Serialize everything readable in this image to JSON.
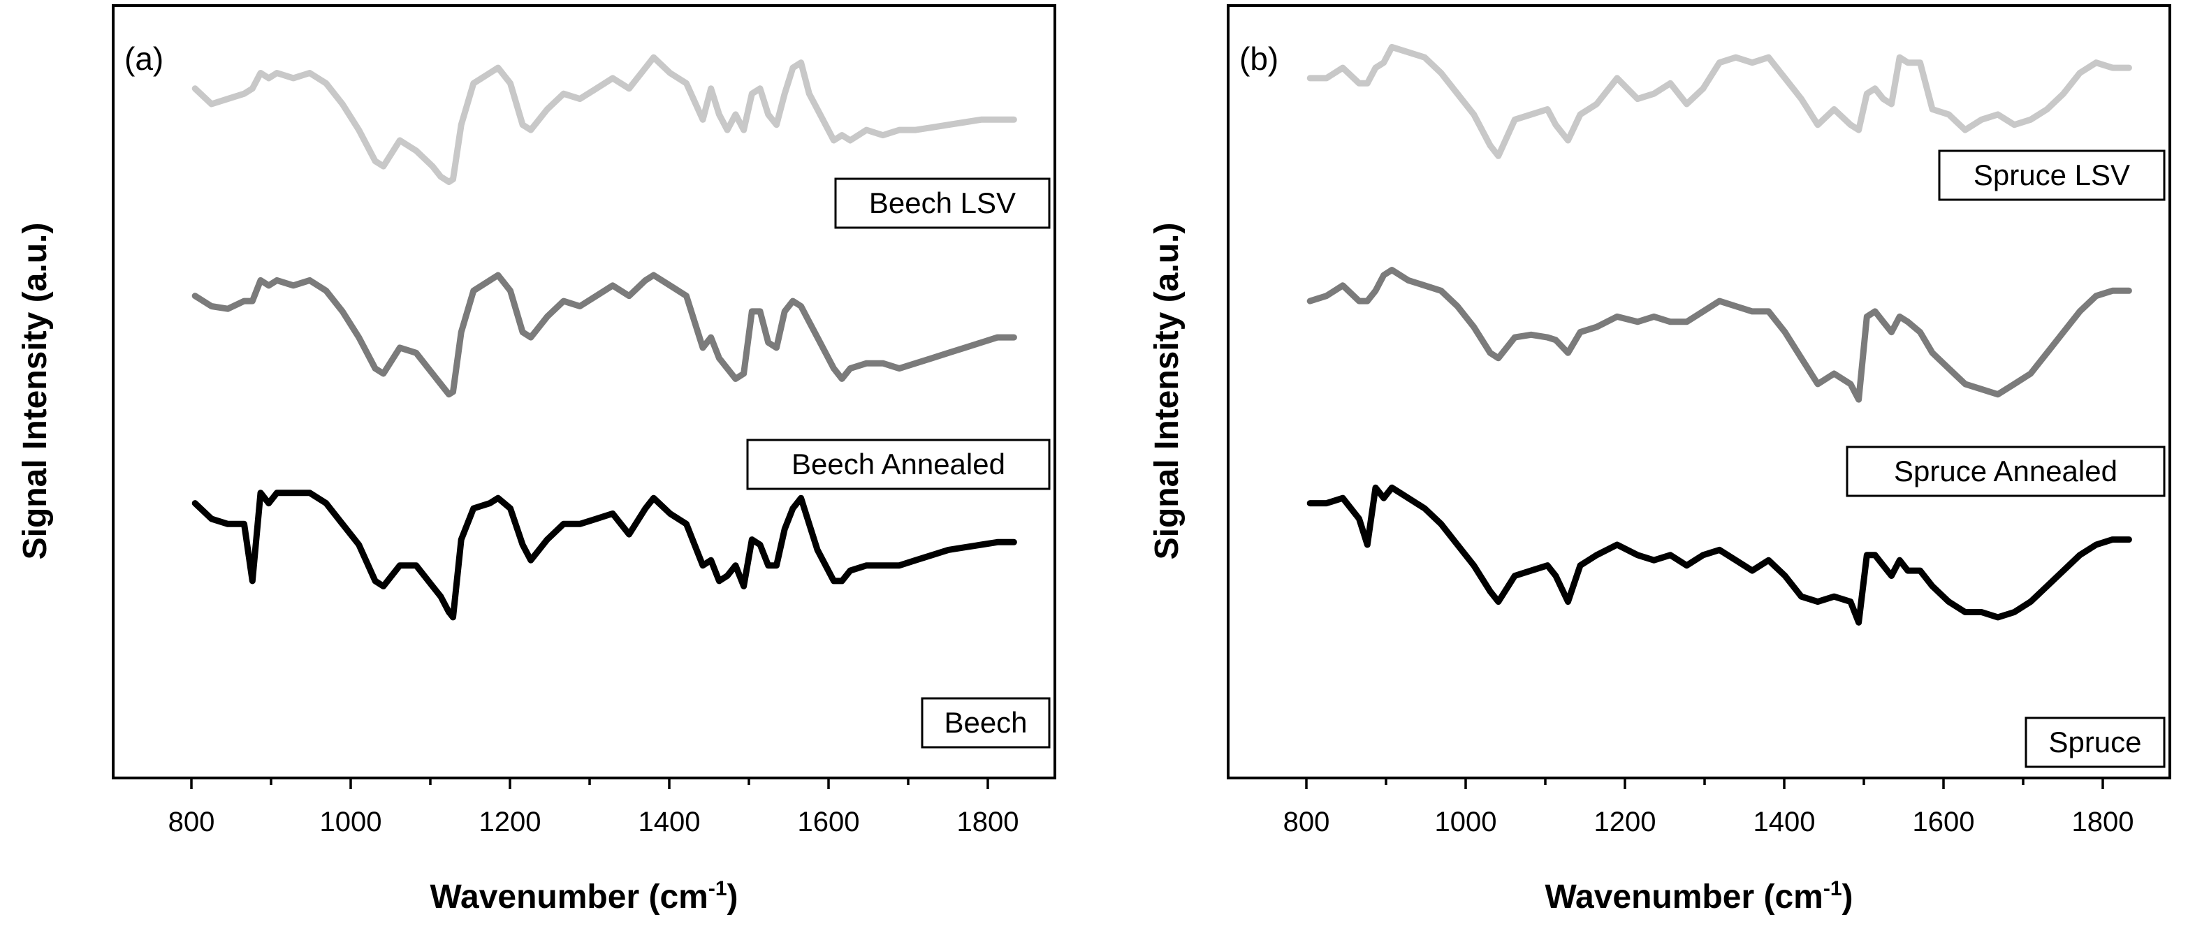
{
  "chart_data": [
    {
      "type": "line",
      "panel_label": "(a)",
      "xlabel": "Wavenumber (cm",
      "xlabel_exponent": "-1",
      "xlabel_suffix": ")",
      "ylabel": "Signal Intensity (a.u.)",
      "xlim": [
        700,
        1850
      ],
      "ylim": [
        -2.6,
        12.3
      ],
      "xticks": [
        800,
        1000,
        1200,
        1400,
        1600,
        1800
      ],
      "y_tick_labels_shown": false,
      "series": [
        {
          "name": "Beech LSV",
          "color": "#c8c8c8",
          "x": [
            800,
            820,
            840,
            860,
            870,
            880,
            890,
            900,
            920,
            940,
            960,
            980,
            1000,
            1020,
            1030,
            1050,
            1070,
            1090,
            1100,
            1110,
            1115,
            1125,
            1140,
            1160,
            1170,
            1185,
            1200,
            1210,
            1230,
            1250,
            1270,
            1290,
            1310,
            1330,
            1350,
            1360,
            1380,
            1400,
            1420,
            1430,
            1440,
            1450,
            1460,
            1470,
            1480,
            1490,
            1500,
            1510,
            1520,
            1530,
            1540,
            1550,
            1560,
            1580,
            1590,
            1600,
            1620,
            1640,
            1660,
            1680,
            1700,
            1720,
            1740,
            1760,
            1780,
            1800
          ],
          "y": [
            10.7,
            10.4,
            10.5,
            10.6,
            10.7,
            11.0,
            10.9,
            11.0,
            10.9,
            11.0,
            10.8,
            10.4,
            9.9,
            9.3,
            9.2,
            9.7,
            9.5,
            9.2,
            9.0,
            8.9,
            8.95,
            10.0,
            10.8,
            11.0,
            11.1,
            10.8,
            10.0,
            9.9,
            10.3,
            10.6,
            10.5,
            10.7,
            10.9,
            10.7,
            11.1,
            11.3,
            11.0,
            10.8,
            10.1,
            10.7,
            10.2,
            9.9,
            10.2,
            9.9,
            10.6,
            10.7,
            10.2,
            10.0,
            10.6,
            11.1,
            11.2,
            10.6,
            10.3,
            9.7,
            9.8,
            9.7,
            9.9,
            9.8,
            9.9,
            9.9,
            9.95,
            10.0,
            10.05,
            10.1,
            10.1,
            10.1
          ]
        },
        {
          "name": "Beech Annealed",
          "color": "#7b7b7b",
          "x": [
            800,
            820,
            840,
            860,
            870,
            880,
            890,
            900,
            920,
            940,
            960,
            980,
            1000,
            1020,
            1030,
            1050,
            1070,
            1090,
            1100,
            1110,
            1115,
            1125,
            1140,
            1160,
            1170,
            1185,
            1200,
            1210,
            1230,
            1250,
            1270,
            1290,
            1310,
            1330,
            1350,
            1360,
            1380,
            1400,
            1420,
            1430,
            1440,
            1450,
            1460,
            1470,
            1480,
            1490,
            1500,
            1510,
            1520,
            1530,
            1540,
            1550,
            1560,
            1580,
            1590,
            1600,
            1620,
            1640,
            1660,
            1680,
            1700,
            1720,
            1740,
            1760,
            1780,
            1800
          ],
          "y": [
            6.7,
            6.5,
            6.45,
            6.6,
            6.6,
            7.0,
            6.9,
            7.0,
            6.9,
            7.0,
            6.8,
            6.4,
            5.9,
            5.3,
            5.2,
            5.7,
            5.6,
            5.2,
            5.0,
            4.8,
            4.85,
            6.0,
            6.8,
            7.0,
            7.1,
            6.8,
            6.0,
            5.9,
            6.3,
            6.6,
            6.5,
            6.7,
            6.9,
            6.7,
            7.0,
            7.1,
            6.9,
            6.7,
            5.7,
            5.9,
            5.5,
            5.3,
            5.1,
            5.2,
            6.4,
            6.4,
            5.8,
            5.7,
            6.4,
            6.6,
            6.5,
            6.2,
            5.9,
            5.3,
            5.1,
            5.3,
            5.4,
            5.4,
            5.3,
            5.4,
            5.5,
            5.6,
            5.7,
            5.8,
            5.9,
            5.9
          ]
        },
        {
          "name": "Beech",
          "color": "#000000",
          "x": [
            800,
            820,
            840,
            860,
            870,
            880,
            890,
            900,
            920,
            940,
            960,
            980,
            1000,
            1020,
            1030,
            1050,
            1070,
            1090,
            1100,
            1110,
            1115,
            1125,
            1140,
            1160,
            1170,
            1185,
            1200,
            1210,
            1230,
            1250,
            1270,
            1290,
            1310,
            1330,
            1350,
            1360,
            1380,
            1400,
            1420,
            1430,
            1440,
            1450,
            1460,
            1470,
            1480,
            1490,
            1500,
            1510,
            1520,
            1530,
            1540,
            1550,
            1560,
            1580,
            1590,
            1600,
            1620,
            1640,
            1660,
            1680,
            1700,
            1720,
            1740,
            1760,
            1780,
            1800
          ],
          "y": [
            2.7,
            2.4,
            2.3,
            2.3,
            1.2,
            2.9,
            2.7,
            2.9,
            2.9,
            2.9,
            2.7,
            2.3,
            1.9,
            1.2,
            1.1,
            1.5,
            1.5,
            1.1,
            0.9,
            0.6,
            0.5,
            2.0,
            2.6,
            2.7,
            2.8,
            2.6,
            1.9,
            1.6,
            2.0,
            2.3,
            2.3,
            2.4,
            2.5,
            2.1,
            2.6,
            2.8,
            2.5,
            2.3,
            1.5,
            1.6,
            1.2,
            1.3,
            1.5,
            1.1,
            2.0,
            1.9,
            1.5,
            1.5,
            2.2,
            2.6,
            2.8,
            2.3,
            1.8,
            1.2,
            1.2,
            1.4,
            1.5,
            1.5,
            1.5,
            1.6,
            1.7,
            1.8,
            1.85,
            1.9,
            1.95,
            1.95
          ]
        }
      ]
    },
    {
      "type": "line",
      "panel_label": "(b)",
      "xlabel": "Wavenumber (cm",
      "xlabel_exponent": "-1",
      "xlabel_suffix": ")",
      "ylabel": "Signal Intensity (a.u.)",
      "xlim": [
        700,
        1850
      ],
      "ylim": [
        -2.6,
        12.3
      ],
      "xticks": [
        800,
        1000,
        1200,
        1400,
        1600,
        1800
      ],
      "y_tick_labels_shown": false,
      "series": [
        {
          "name": "Spruce LSV",
          "color": "#c8c8c8",
          "x": [
            800,
            820,
            840,
            860,
            870,
            880,
            890,
            900,
            920,
            940,
            960,
            980,
            1000,
            1020,
            1030,
            1050,
            1070,
            1090,
            1100,
            1115,
            1130,
            1150,
            1175,
            1200,
            1220,
            1240,
            1260,
            1280,
            1300,
            1320,
            1340,
            1360,
            1380,
            1400,
            1420,
            1440,
            1460,
            1470,
            1480,
            1490,
            1500,
            1510,
            1520,
            1530,
            1545,
            1560,
            1580,
            1600,
            1620,
            1640,
            1660,
            1680,
            1700,
            1720,
            1740,
            1760,
            1780,
            1800
          ],
          "y": [
            10.9,
            10.9,
            11.1,
            10.8,
            10.8,
            11.1,
            11.2,
            11.5,
            11.4,
            11.3,
            11.0,
            10.6,
            10.2,
            9.6,
            9.4,
            10.1,
            10.2,
            10.3,
            10.0,
            9.7,
            10.2,
            10.4,
            10.9,
            10.5,
            10.6,
            10.8,
            10.4,
            10.7,
            11.2,
            11.3,
            11.2,
            11.3,
            10.9,
            10.5,
            10.0,
            10.3,
            10.0,
            9.9,
            10.6,
            10.7,
            10.5,
            10.4,
            11.3,
            11.2,
            11.2,
            10.3,
            10.2,
            9.9,
            10.1,
            10.2,
            10.0,
            10.1,
            10.3,
            10.6,
            11.0,
            11.2,
            11.1,
            11.1
          ]
        },
        {
          "name": "Spruce Annealed",
          "color": "#7b7b7b",
          "x": [
            800,
            820,
            840,
            860,
            870,
            880,
            890,
            900,
            920,
            940,
            960,
            980,
            1000,
            1020,
            1030,
            1050,
            1070,
            1090,
            1100,
            1115,
            1130,
            1150,
            1175,
            1200,
            1220,
            1240,
            1260,
            1280,
            1300,
            1320,
            1340,
            1360,
            1380,
            1400,
            1420,
            1440,
            1460,
            1470,
            1480,
            1490,
            1500,
            1510,
            1520,
            1530,
            1545,
            1560,
            1580,
            1600,
            1620,
            1640,
            1660,
            1680,
            1700,
            1720,
            1740,
            1760,
            1780,
            1800
          ],
          "y": [
            6.6,
            6.7,
            6.9,
            6.6,
            6.6,
            6.8,
            7.1,
            7.2,
            7.0,
            6.9,
            6.8,
            6.5,
            6.1,
            5.6,
            5.5,
            5.9,
            5.95,
            5.9,
            5.85,
            5.6,
            6.0,
            6.1,
            6.3,
            6.2,
            6.3,
            6.2,
            6.2,
            6.4,
            6.6,
            6.5,
            6.4,
            6.4,
            6.0,
            5.5,
            5.0,
            5.2,
            5.0,
            4.7,
            6.3,
            6.4,
            6.2,
            6.0,
            6.3,
            6.2,
            6.0,
            5.6,
            5.3,
            5.0,
            4.9,
            4.8,
            5.0,
            5.2,
            5.6,
            6.0,
            6.4,
            6.7,
            6.8,
            6.8
          ]
        },
        {
          "name": "Spruce",
          "color": "#000000",
          "x": [
            800,
            820,
            840,
            860,
            870,
            880,
            890,
            900,
            920,
            940,
            960,
            980,
            1000,
            1020,
            1030,
            1050,
            1070,
            1090,
            1100,
            1115,
            1130,
            1150,
            1175,
            1200,
            1220,
            1240,
            1260,
            1280,
            1300,
            1320,
            1340,
            1360,
            1380,
            1400,
            1420,
            1440,
            1460,
            1470,
            1480,
            1490,
            1500,
            1510,
            1520,
            1530,
            1545,
            1560,
            1580,
            1600,
            1620,
            1640,
            1660,
            1680,
            1700,
            1720,
            1740,
            1760,
            1780,
            1800
          ],
          "y": [
            2.7,
            2.7,
            2.8,
            2.4,
            1.9,
            3.0,
            2.8,
            3.0,
            2.8,
            2.6,
            2.3,
            1.9,
            1.5,
            1.0,
            0.8,
            1.3,
            1.4,
            1.5,
            1.3,
            0.8,
            1.5,
            1.7,
            1.9,
            1.7,
            1.6,
            1.7,
            1.5,
            1.7,
            1.8,
            1.6,
            1.4,
            1.6,
            1.3,
            0.9,
            0.8,
            0.9,
            0.8,
            0.4,
            1.7,
            1.7,
            1.5,
            1.3,
            1.6,
            1.4,
            1.4,
            1.1,
            0.8,
            0.6,
            0.6,
            0.5,
            0.6,
            0.8,
            1.1,
            1.4,
            1.7,
            1.9,
            2.0,
            2.0
          ]
        }
      ]
    }
  ]
}
